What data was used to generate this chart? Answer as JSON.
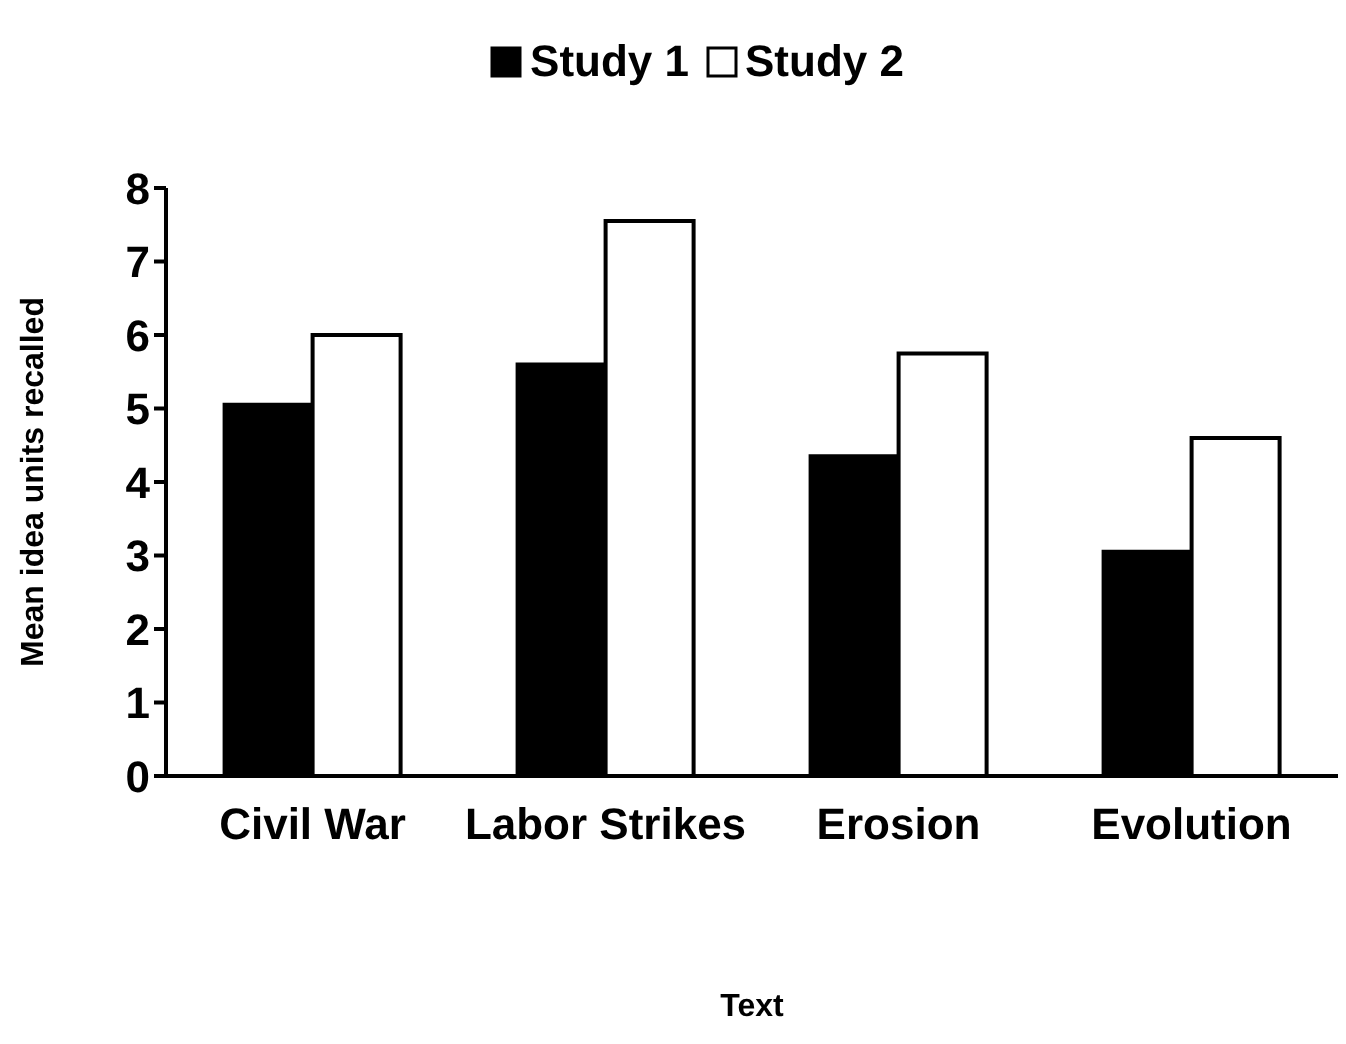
{
  "chart_data": {
    "type": "bar",
    "xlabel": "Text",
    "ylabel": "Mean idea units recalled",
    "categories": [
      "Civil War",
      "Labor Strikes",
      "Erosion",
      "Evolution"
    ],
    "series": [
      {
        "name": "Study 1",
        "color": "#000000",
        "values": [
          5.05,
          5.6,
          4.35,
          3.05
        ]
      },
      {
        "name": "Study 2",
        "color": "#ffffff",
        "values": [
          6.0,
          7.55,
          5.75,
          4.6
        ]
      }
    ],
    "ylim": [
      0,
      8
    ],
    "yticks": [
      0,
      1,
      2,
      3,
      4,
      5,
      6,
      7,
      8
    ],
    "grid": false,
    "legend": "top"
  }
}
